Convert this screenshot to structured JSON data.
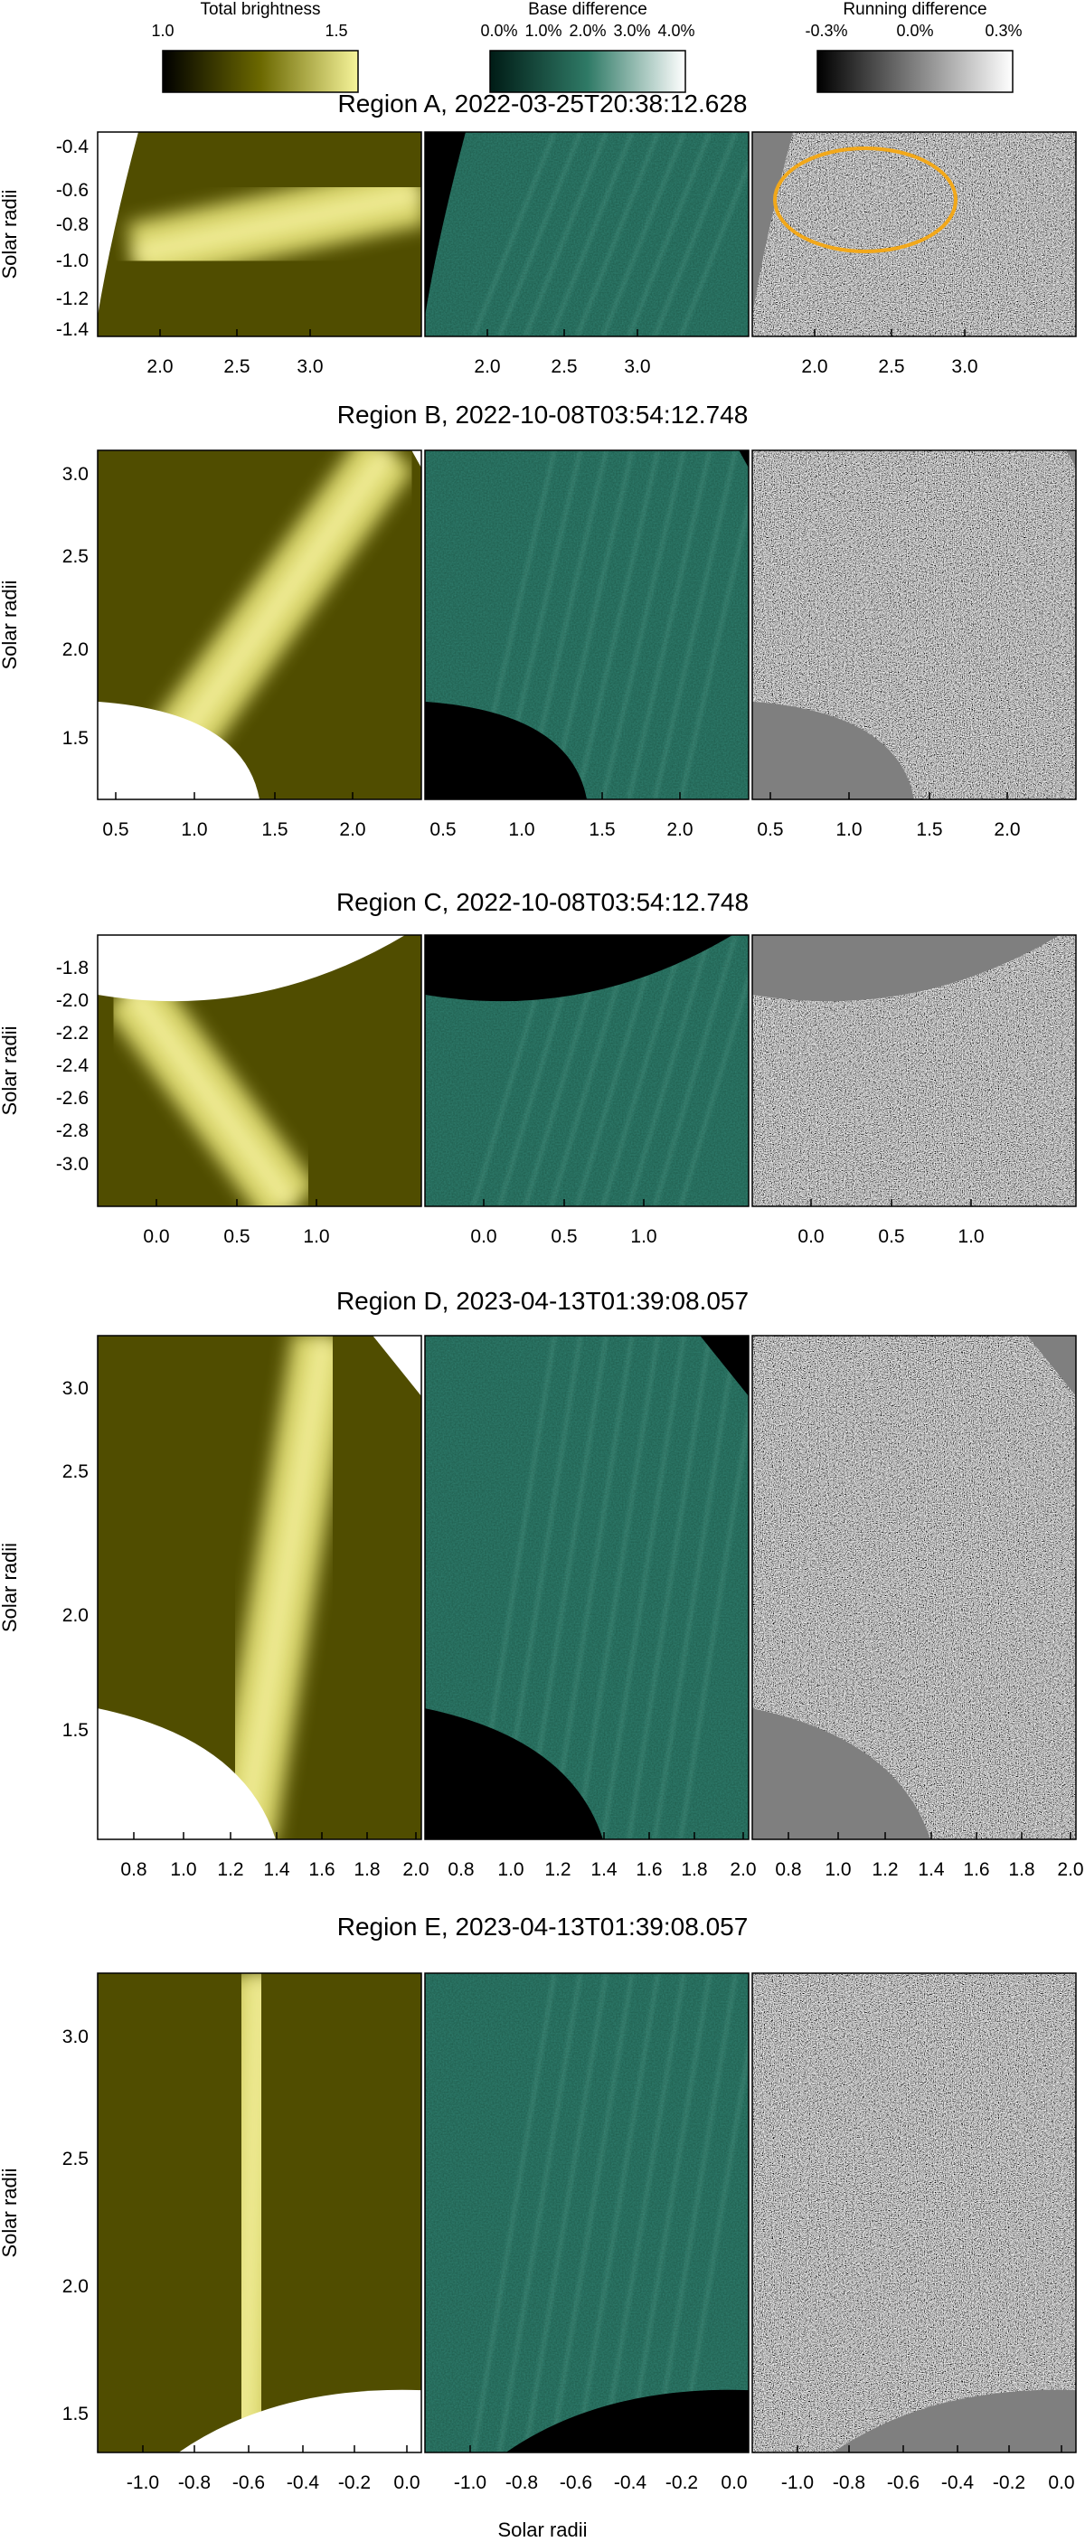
{
  "colorbars": [
    {
      "title": "Total brightness",
      "ticks": [
        "1.0",
        "1.5"
      ],
      "colors": [
        "#000000",
        "#6b6800",
        "#f6f49a"
      ]
    },
    {
      "title": "Base difference",
      "ticks": [
        "0.0%",
        "1.0%",
        "2.0%",
        "3.0%",
        "4.0%"
      ],
      "colors": [
        "#001c16",
        "#2f7a66",
        "#ffffff"
      ]
    },
    {
      "title": "Running difference",
      "ticks": [
        "-0.3%",
        "0.0%",
        "0.3%"
      ],
      "colors": [
        "#000000",
        "#808080",
        "#ffffff"
      ]
    }
  ],
  "shared_xlabel": "Solar radii",
  "ylabel": "Solar radii",
  "regions": [
    {
      "title": "Region A, 2022-03-25T20:38:12.628",
      "yticks": [
        "-0.4",
        "-0.6",
        "-0.8",
        "-1.0",
        "-1.2",
        "-1.4"
      ],
      "xticks": [
        [
          "2.0",
          "2.5",
          "3.0"
        ],
        [
          "2.0",
          "2.5",
          "3.0"
        ],
        [
          "2.0",
          "2.5",
          "3.0"
        ]
      ]
    },
    {
      "title": "Region B, 2022-10-08T03:54:12.748",
      "yticks": [
        "3.0",
        "2.5",
        "2.0",
        "1.5"
      ],
      "xticks": [
        [
          "0.5",
          "1.0",
          "1.5",
          "2.0"
        ],
        [
          "0.5",
          "1.0",
          "1.5",
          "2.0"
        ],
        [
          "0.5",
          "1.0",
          "1.5",
          "2.0"
        ]
      ]
    },
    {
      "title": "Region C, 2022-10-08T03:54:12.748",
      "yticks": [
        "-1.8",
        "-2.0",
        "-2.2",
        "-2.4",
        "-2.6",
        "-2.8",
        "-3.0"
      ],
      "xticks": [
        [
          "0.0",
          "0.5",
          "1.0"
        ],
        [
          "0.0",
          "0.5",
          "1.0"
        ],
        [
          "0.0",
          "0.5",
          "1.0"
        ]
      ]
    },
    {
      "title": "Region D, 2023-04-13T01:39:08.057",
      "yticks": [
        "3.0",
        "2.5",
        "2.0",
        "1.5"
      ],
      "xticks": [
        [
          "0.8",
          "1.0",
          "1.2",
          "1.4",
          "1.6",
          "1.8",
          "2.0"
        ],
        [
          "0.8",
          "1.0",
          "1.2",
          "1.4",
          "1.6",
          "1.8",
          "2.0"
        ],
        [
          "0.8",
          "1.0",
          "1.2",
          "1.4",
          "1.6",
          "1.8",
          "2.0"
        ]
      ]
    },
    {
      "title": "Region E, 2023-04-13T01:39:08.057",
      "yticks": [
        "3.0",
        "2.5",
        "2.0",
        "1.5"
      ],
      "xticks": [
        [
          "-1.0",
          "-0.8",
          "-0.6",
          "-0.4",
          "-0.2",
          "0.0"
        ],
        [
          "-1.0",
          "-0.8",
          "-0.6",
          "-0.4",
          "-0.2",
          "0.0"
        ],
        [
          "-1.0",
          "-0.8",
          "-0.6",
          "-0.4",
          "-0.2",
          "0.0"
        ]
      ]
    }
  ]
}
